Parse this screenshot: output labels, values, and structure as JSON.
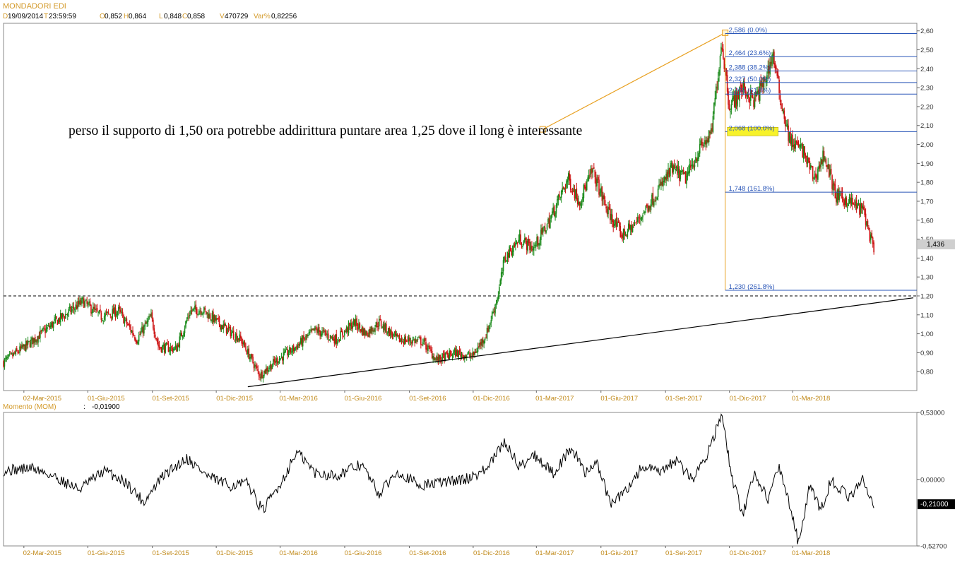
{
  "header": {
    "title": "MONDADORI EDI",
    "fields": [
      {
        "label": "D",
        "value": "19/09/2014"
      },
      {
        "label": "T",
        "value": "23:59:59"
      },
      {
        "label": "O",
        "value": "0,852"
      },
      {
        "label": "H",
        "value": "0,864"
      },
      {
        "label": "L",
        "value": "0,848"
      },
      {
        "label": "C",
        "value": "0,858"
      },
      {
        "label": "V",
        "value": "470729"
      },
      {
        "label": "Var%",
        "value": "0,82256"
      }
    ]
  },
  "annotation": "perso il supporto di 1,50 ora potrebbe addirittura puntare area 1,25 dove il long è interessante",
  "colors": {
    "up": "#1a8a1a",
    "down": "#cc1111",
    "fib": "#2a56b8",
    "fib_line_vertical": "#e8a020",
    "trend": "#e8a020",
    "axis_text": "#c18a1a",
    "fib_highlight": "#f7f22a"
  },
  "chart_data": [
    {
      "type": "candlestick",
      "title": "",
      "x_tick_labels": [
        "02-Mar-2015",
        "01-Giu-2015",
        "01-Set-2015",
        "01-Dic-2015",
        "01-Mar-2016",
        "01-Giu-2016",
        "01-Set-2016",
        "01-Dic-2016",
        "01-Mar-2017",
        "01-Giu-2017",
        "01-Set-2017",
        "01-Dic-2017",
        "01-Mar-2018"
      ],
      "y_tick_labels": [
        "0,80",
        "0,90",
        "1,00",
        "1,10",
        "1,20",
        "1,30",
        "1,40",
        "1,50",
        "1,60",
        "1,70",
        "1,80",
        "1,90",
        "2,00",
        "2,10",
        "2,20",
        "2,30",
        "2,40",
        "2,50",
        "2,60"
      ],
      "ylim": [
        0.7,
        2.64
      ],
      "last_price_label": "1,436",
      "last_price": 1.436,
      "price_path": [
        {
          "x": "2015-02-01",
          "y": 0.85
        },
        {
          "x": "2015-03-10",
          "y": 0.95
        },
        {
          "x": "2015-04-15",
          "y": 1.06
        },
        {
          "x": "2015-05-25",
          "y": 1.17
        },
        {
          "x": "2015-06-20",
          "y": 1.09
        },
        {
          "x": "2015-07-15",
          "y": 1.12
        },
        {
          "x": "2015-08-10",
          "y": 0.97
        },
        {
          "x": "2015-08-30",
          "y": 1.09
        },
        {
          "x": "2015-09-10",
          "y": 0.93
        },
        {
          "x": "2015-10-05",
          "y": 0.92
        },
        {
          "x": "2015-10-25",
          "y": 1.12
        },
        {
          "x": "2015-11-10",
          "y": 1.13
        },
        {
          "x": "2015-12-10",
          "y": 1.04
        },
        {
          "x": "2016-01-05",
          "y": 0.97
        },
        {
          "x": "2016-02-01",
          "y": 0.78
        },
        {
          "x": "2016-02-25",
          "y": 0.86
        },
        {
          "x": "2016-03-20",
          "y": 0.92
        },
        {
          "x": "2016-04-20",
          "y": 1.02
        },
        {
          "x": "2016-05-20",
          "y": 0.97
        },
        {
          "x": "2016-06-15",
          "y": 1.06
        },
        {
          "x": "2016-07-01",
          "y": 1.0
        },
        {
          "x": "2016-07-20",
          "y": 1.06
        },
        {
          "x": "2016-08-15",
          "y": 0.97
        },
        {
          "x": "2016-09-20",
          "y": 0.96
        },
        {
          "x": "2016-10-10",
          "y": 0.86
        },
        {
          "x": "2016-11-05",
          "y": 0.9
        },
        {
          "x": "2016-11-30",
          "y": 0.88
        },
        {
          "x": "2016-12-20",
          "y": 1.0
        },
        {
          "x": "2017-01-05",
          "y": 1.2
        },
        {
          "x": "2017-01-15",
          "y": 1.4
        },
        {
          "x": "2017-02-05",
          "y": 1.5
        },
        {
          "x": "2017-02-25",
          "y": 1.45
        },
        {
          "x": "2017-03-20",
          "y": 1.6
        },
        {
          "x": "2017-04-15",
          "y": 1.82
        },
        {
          "x": "2017-05-01",
          "y": 1.7
        },
        {
          "x": "2017-05-20",
          "y": 1.86
        },
        {
          "x": "2017-06-10",
          "y": 1.65
        },
        {
          "x": "2017-07-01",
          "y": 1.52
        },
        {
          "x": "2017-07-20",
          "y": 1.58
        },
        {
          "x": "2017-08-15",
          "y": 1.72
        },
        {
          "x": "2017-09-10",
          "y": 1.87
        },
        {
          "x": "2017-09-30",
          "y": 1.82
        },
        {
          "x": "2017-10-20",
          "y": 1.98
        },
        {
          "x": "2017-11-05",
          "y": 2.05
        },
        {
          "x": "2017-11-20",
          "y": 2.55
        },
        {
          "x": "2017-12-01",
          "y": 2.2
        },
        {
          "x": "2017-12-20",
          "y": 2.3
        },
        {
          "x": "2018-01-05",
          "y": 2.23
        },
        {
          "x": "2018-01-20",
          "y": 2.33
        },
        {
          "x": "2018-02-01",
          "y": 2.48
        },
        {
          "x": "2018-02-10",
          "y": 2.27
        },
        {
          "x": "2018-02-25",
          "y": 2.02
        },
        {
          "x": "2018-03-15",
          "y": 1.97
        },
        {
          "x": "2018-04-01",
          "y": 1.82
        },
        {
          "x": "2018-04-15",
          "y": 1.95
        },
        {
          "x": "2018-05-01",
          "y": 1.73
        },
        {
          "x": "2018-05-20",
          "y": 1.7
        },
        {
          "x": "2018-06-10",
          "y": 1.65
        },
        {
          "x": "2018-06-25",
          "y": 1.43
        }
      ],
      "fibonacci_levels": [
        {
          "value": 2.586,
          "label": "2,586 (0.0%)"
        },
        {
          "value": 2.464,
          "label": "2,464 (23.6%)"
        },
        {
          "value": 2.388,
          "label": "2,388 (38.2%)"
        },
        {
          "value": 2.327,
          "label": "2,327 (50.0%)"
        },
        {
          "value": 2.266,
          "label": "2,266 (61.8%)"
        },
        {
          "value": 2.068,
          "label": "2,068 (100.0%)"
        },
        {
          "value": 1.748,
          "label": "1,748 (161.8%)"
        },
        {
          "value": 1.23,
          "label": "1,230 (261.8%)"
        }
      ],
      "horizontal_dashed_line": 1.2,
      "trendlines": [
        {
          "color": "black",
          "from": {
            "x": "2016-01-15",
            "y": 0.72
          },
          "to": {
            "x": "2018-08-20",
            "y": 1.19
          }
        },
        {
          "color": "orange",
          "from": {
            "x": "2017-03-10",
            "y": 2.08
          },
          "to": {
            "x": "2017-11-25",
            "y": 2.59
          }
        }
      ]
    },
    {
      "type": "line",
      "title": "Momento (MOM)",
      "current_value_label": "-0,01900",
      "y_tick_labels": [
        "0,53000",
        "0,00000",
        "-0,52700"
      ],
      "ylim": [
        -0.527,
        0.53
      ],
      "last_value_label": "-0,21000",
      "last_value": -0.21,
      "x_tick_labels": [
        "02-Mar-2015",
        "01-Giu-2015",
        "01-Set-2015",
        "01-Dic-2015",
        "01-Mar-2016",
        "01-Giu-2016",
        "01-Set-2016",
        "01-Dic-2016",
        "01-Mar-2017",
        "01-Giu-2017",
        "01-Set-2017",
        "01-Dic-2017",
        "01-Mar-2018"
      ],
      "momentum_path": [
        {
          "x": "2015-02-01",
          "y": 0.07
        },
        {
          "x": "2015-03-15",
          "y": 0.09
        },
        {
          "x": "2015-04-15",
          "y": 0.02
        },
        {
          "x": "2015-05-20",
          "y": -0.08
        },
        {
          "x": "2015-06-25",
          "y": 0.07
        },
        {
          "x": "2015-07-25",
          "y": -0.02
        },
        {
          "x": "2015-08-20",
          "y": -0.18
        },
        {
          "x": "2015-09-15",
          "y": 0.02
        },
        {
          "x": "2015-10-20",
          "y": 0.17
        },
        {
          "x": "2015-11-20",
          "y": 0.02
        },
        {
          "x": "2015-12-20",
          "y": -0.05
        },
        {
          "x": "2016-01-15",
          "y": -0.03
        },
        {
          "x": "2016-02-05",
          "y": -0.25
        },
        {
          "x": "2016-03-05",
          "y": 0.0
        },
        {
          "x": "2016-03-25",
          "y": 0.22
        },
        {
          "x": "2016-04-20",
          "y": 0.05
        },
        {
          "x": "2016-05-20",
          "y": 0.03
        },
        {
          "x": "2016-06-25",
          "y": 0.12
        },
        {
          "x": "2016-07-20",
          "y": -0.12
        },
        {
          "x": "2016-08-15",
          "y": 0.07
        },
        {
          "x": "2016-09-15",
          "y": -0.05
        },
        {
          "x": "2016-10-20",
          "y": -0.02
        },
        {
          "x": "2016-11-20",
          "y": 0.0
        },
        {
          "x": "2016-12-20",
          "y": 0.08
        },
        {
          "x": "2017-01-15",
          "y": 0.3
        },
        {
          "x": "2017-02-05",
          "y": 0.1
        },
        {
          "x": "2017-02-25",
          "y": 0.2
        },
        {
          "x": "2017-03-25",
          "y": 0.05
        },
        {
          "x": "2017-04-20",
          "y": 0.25
        },
        {
          "x": "2017-05-10",
          "y": 0.05
        },
        {
          "x": "2017-05-25",
          "y": 0.15
        },
        {
          "x": "2017-06-15",
          "y": -0.2
        },
        {
          "x": "2017-07-05",
          "y": -0.1
        },
        {
          "x": "2017-07-30",
          "y": 0.1
        },
        {
          "x": "2017-08-25",
          "y": 0.05
        },
        {
          "x": "2017-09-15",
          "y": 0.15
        },
        {
          "x": "2017-10-10",
          "y": 0.0
        },
        {
          "x": "2017-10-30",
          "y": 0.2
        },
        {
          "x": "2017-11-20",
          "y": 0.51
        },
        {
          "x": "2017-12-05",
          "y": 0.0
        },
        {
          "x": "2017-12-20",
          "y": -0.28
        },
        {
          "x": "2018-01-05",
          "y": 0.05
        },
        {
          "x": "2018-01-25",
          "y": -0.15
        },
        {
          "x": "2018-02-10",
          "y": 0.1
        },
        {
          "x": "2018-02-25",
          "y": -0.2
        },
        {
          "x": "2018-03-10",
          "y": -0.52
        },
        {
          "x": "2018-03-25",
          "y": -0.05
        },
        {
          "x": "2018-04-10",
          "y": -0.25
        },
        {
          "x": "2018-04-25",
          "y": 0.0
        },
        {
          "x": "2018-05-20",
          "y": -0.15
        },
        {
          "x": "2018-06-10",
          "y": 0.0
        },
        {
          "x": "2018-06-25",
          "y": -0.21
        }
      ]
    }
  ]
}
